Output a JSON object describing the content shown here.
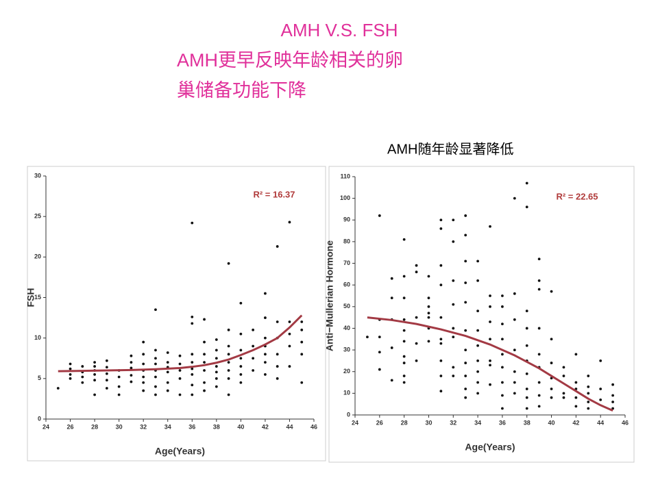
{
  "title": "AMH V.S. FSH",
  "subtitle_lines": [
    "AMH更早反映年龄相关的卵",
    "巢储备功能下降"
  ],
  "annotation": "AMH随年龄显著降低",
  "chart_data": [
    {
      "type": "scatter",
      "xlabel": "Age(Years)",
      "ylabel": "FSH",
      "annotation": "R² = 16.37",
      "xlim": [
        24,
        46
      ],
      "xticks": [
        24,
        26,
        28,
        30,
        32,
        34,
        36,
        38,
        40,
        42,
        44,
        46
      ],
      "ylim": [
        0,
        30
      ],
      "yticks": [
        0,
        5,
        10,
        15,
        20,
        25,
        30
      ],
      "series": [
        {
          "type": "scatter",
          "color": "#111111",
          "x": [
            25,
            26,
            26,
            26,
            26,
            27,
            27,
            27,
            27,
            28,
            28,
            28,
            28,
            28,
            28,
            29,
            29,
            29,
            29,
            29,
            30,
            30,
            30,
            30,
            31,
            31,
            31,
            31,
            31,
            32,
            32,
            32,
            32,
            32,
            32,
            32,
            33,
            33,
            33,
            33,
            33,
            33,
            33,
            33,
            34,
            34,
            34,
            34,
            34,
            34,
            35,
            35,
            35,
            35,
            35,
            36,
            36,
            36,
            36,
            36,
            36,
            36,
            36,
            36,
            37,
            37,
            37,
            37,
            37,
            37,
            37,
            38,
            38,
            38,
            38,
            38,
            38,
            38,
            39,
            39,
            39,
            39,
            39,
            39,
            39,
            39,
            40,
            40,
            40,
            40,
            40,
            40,
            40,
            41,
            41,
            41,
            41,
            42,
            42,
            42,
            42,
            42,
            42,
            42,
            43,
            43,
            43,
            43,
            43,
            43,
            44,
            44,
            44,
            44,
            44,
            45,
            45,
            45,
            45,
            45
          ],
          "values": [
            3.8,
            6.8,
            6.2,
            5.5,
            5,
            6.5,
            5.8,
            5.2,
            4.5,
            7,
            6.5,
            6,
            5.5,
            4.8,
            3,
            7.2,
            6.4,
            5.6,
            4.8,
            3.8,
            6,
            5.2,
            4,
            3,
            7.8,
            7,
            6.3,
            5.4,
            4.6,
            9.5,
            8,
            6.8,
            6,
            5.2,
            4.5,
            3.5,
            13.5,
            8.5,
            7.5,
            6.8,
            6,
            5.2,
            4,
            3,
            8.2,
            7,
            6.4,
            5.8,
            4.5,
            3.5,
            7.8,
            6.8,
            6,
            5,
            3,
            24.2,
            12.6,
            11.8,
            8,
            7,
            6.2,
            5.5,
            4.2,
            3,
            12.3,
            9.5,
            8,
            7,
            6,
            4.5,
            3.5,
            9.8,
            8.5,
            7.5,
            6.5,
            5.8,
            5,
            4,
            19.2,
            11,
            9,
            8,
            7,
            6,
            5,
            3,
            14.3,
            10.5,
            8.5,
            7.5,
            6.5,
            5.5,
            4.5,
            11,
            9,
            7.5,
            6,
            15.5,
            12.5,
            10,
            9,
            8,
            7,
            5.5,
            21.3,
            12,
            10,
            8,
            6.5,
            5,
            24.3,
            12,
            10.5,
            9,
            6.5,
            12,
            11,
            9.5,
            8,
            4.5
          ]
        },
        {
          "type": "line",
          "color": "#a33a44",
          "x": [
            25,
            27,
            29,
            31,
            33,
            35,
            36,
            37,
            38,
            39,
            40,
            41,
            42,
            43,
            44,
            45
          ],
          "values": [
            5.9,
            5.95,
            6.0,
            6.05,
            6.15,
            6.3,
            6.45,
            6.65,
            6.95,
            7.35,
            7.9,
            8.5,
            9.2,
            10.0,
            11.3,
            12.8
          ]
        }
      ]
    },
    {
      "type": "scatter",
      "xlabel": "Age(Years)",
      "ylabel": "Anti−Mullerian Hormone",
      "annotation": "R² = 22.65",
      "xlim": [
        24,
        46
      ],
      "xticks": [
        24,
        26,
        28,
        30,
        32,
        34,
        36,
        38,
        40,
        42,
        44,
        46
      ],
      "ylim": [
        0,
        110
      ],
      "yticks": [
        0,
        10,
        20,
        30,
        40,
        50,
        60,
        70,
        80,
        90,
        100,
        110
      ],
      "series": [
        {
          "type": "scatter",
          "color": "#111111",
          "x": [
            25,
            26,
            26,
            26,
            26,
            26,
            27,
            27,
            27,
            27,
            27,
            28,
            28,
            28,
            28,
            28,
            28,
            28,
            28,
            28,
            28,
            29,
            29,
            29,
            29,
            29,
            30,
            30,
            30,
            30,
            30,
            30,
            30,
            31,
            31,
            31,
            31,
            31,
            31,
            31,
            31,
            31,
            31,
            32,
            32,
            32,
            32,
            32,
            32,
            32,
            32,
            33,
            33,
            33,
            33,
            33,
            33,
            33,
            33,
            33,
            33,
            33,
            34,
            34,
            34,
            34,
            34,
            34,
            34,
            34,
            34,
            35,
            35,
            35,
            35,
            35,
            35,
            35,
            35,
            36,
            36,
            36,
            36,
            36,
            36,
            36,
            36,
            36,
            37,
            37,
            37,
            37,
            37,
            37,
            37,
            38,
            38,
            38,
            38,
            38,
            38,
            38,
            38,
            38,
            38,
            39,
            39,
            39,
            39,
            39,
            39,
            39,
            39,
            39,
            40,
            40,
            40,
            40,
            40,
            40,
            41,
            41,
            41,
            41,
            42,
            42,
            42,
            42,
            42,
            43,
            43,
            43,
            43,
            43,
            44,
            44,
            44,
            45,
            45,
            45,
            45
          ],
          "values": [
            36,
            92,
            44,
            36,
            29,
            21,
            63,
            54,
            44,
            31,
            16,
            81,
            64,
            54,
            44,
            39,
            34,
            27,
            24,
            18,
            15,
            69,
            66,
            45,
            33,
            25,
            64,
            54,
            50,
            47,
            45,
            40,
            34,
            90,
            86,
            69,
            60,
            45,
            35,
            33,
            25,
            18,
            11,
            90,
            80,
            62,
            51,
            40,
            36,
            22,
            18,
            92,
            83,
            71,
            61,
            52,
            39,
            30,
            24,
            18,
            12,
            8,
            71,
            62,
            48,
            39,
            32,
            25,
            20,
            15,
            10,
            87,
            55,
            50,
            43,
            35,
            25,
            23,
            14,
            55,
            50,
            42,
            35,
            28,
            22,
            15,
            9,
            3,
            100,
            56,
            44,
            30,
            20,
            15,
            10,
            107,
            96,
            48,
            40,
            32,
            25,
            19,
            12,
            8,
            3,
            72,
            62,
            58,
            40,
            28,
            22,
            15,
            9,
            4,
            57,
            35,
            24,
            17,
            12,
            8,
            22,
            18,
            10,
            8,
            28,
            15,
            12,
            8,
            4,
            18,
            13,
            10,
            6,
            3,
            25,
            12,
            7,
            14,
            9,
            6,
            3
          ]
        },
        {
          "type": "line",
          "color": "#a33a44",
          "x": [
            25,
            27,
            29,
            31,
            33,
            35,
            37,
            39,
            40,
            41,
            42,
            43,
            44,
            45
          ],
          "values": [
            45,
            43.8,
            42,
            39.5,
            36.5,
            32.5,
            27.5,
            21.5,
            18,
            14.5,
            11,
            7.5,
            4.5,
            2
          ]
        }
      ]
    }
  ]
}
